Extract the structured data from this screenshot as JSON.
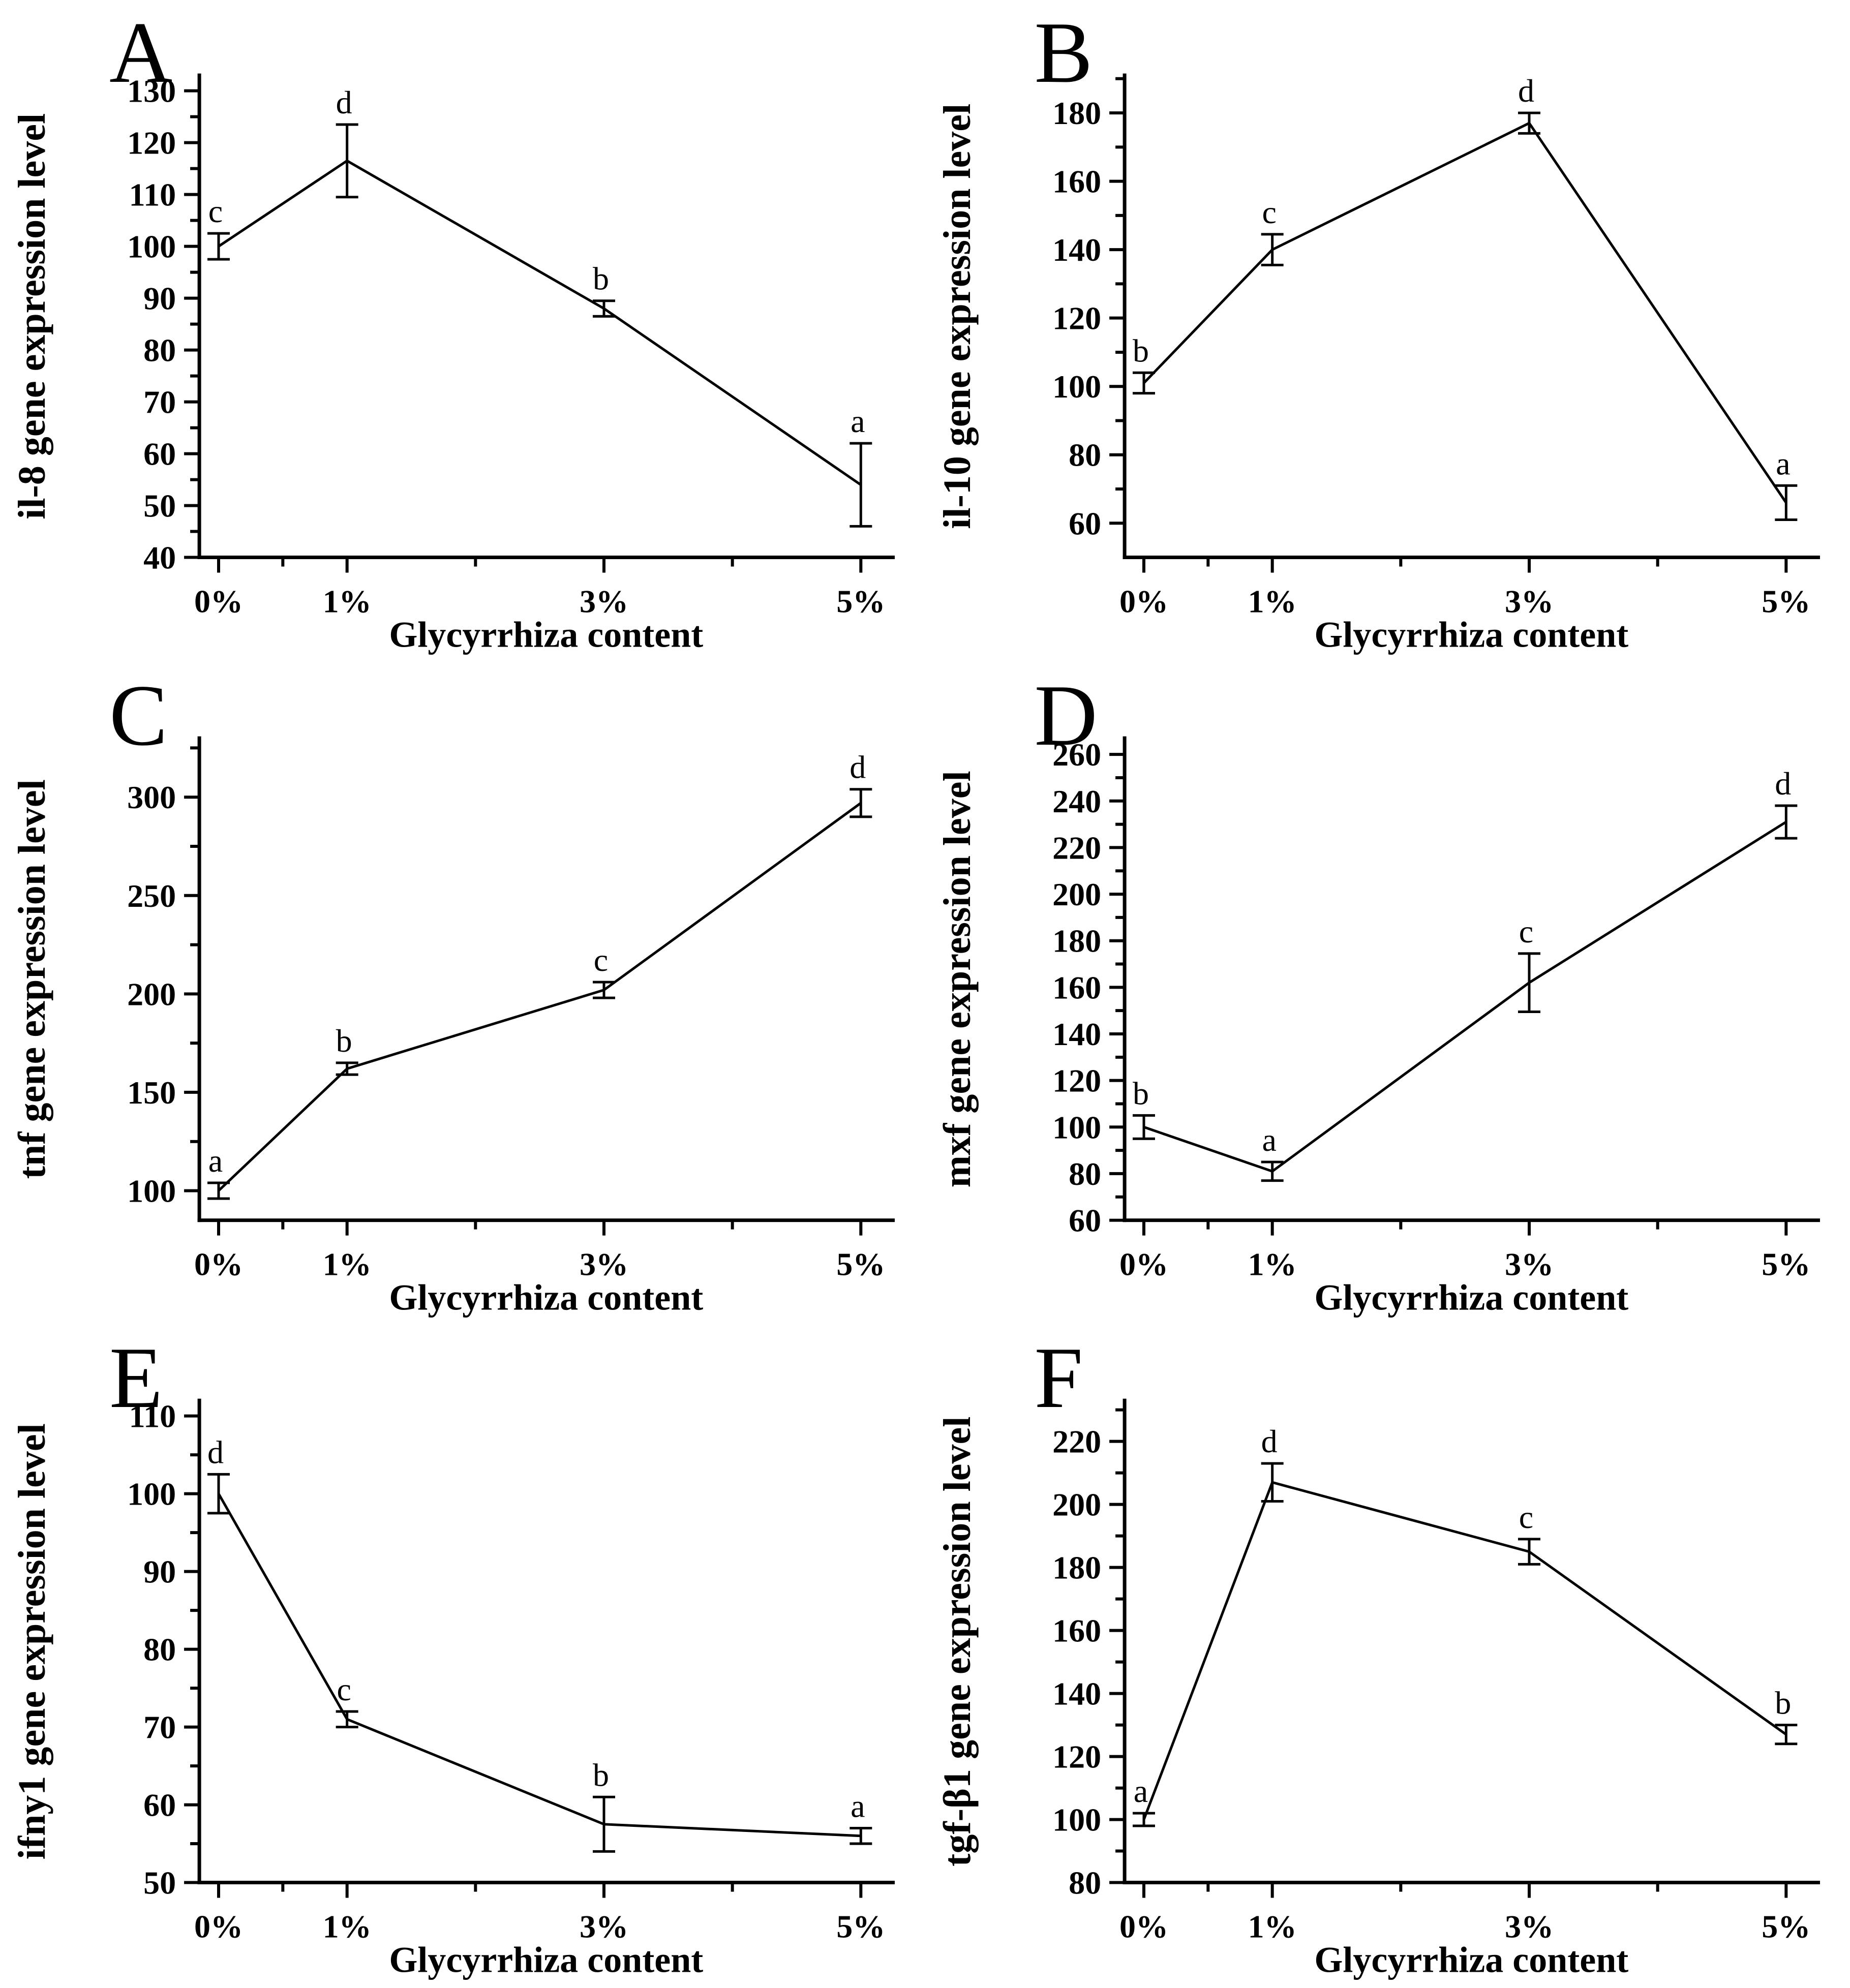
{
  "figure": {
    "background": "#ffffff",
    "line_color": "#000000",
    "xlabel_shared": "Glycyrrhiza content"
  },
  "chart_data": [
    {
      "type": "line",
      "panel": "A",
      "title": "",
      "ylabel": "il-8 gene expression level",
      "xlabel": "Glycyrrhiza content",
      "x_categories": [
        "0%",
        "1%",
        "3%",
        "5%"
      ],
      "x": [
        0,
        1,
        3,
        5
      ],
      "values": [
        100,
        116.5,
        88,
        54
      ],
      "errors": [
        2.5,
        7,
        1.5,
        8
      ],
      "point_labels": [
        "c",
        "d",
        "b",
        "a"
      ],
      "yticks": {
        "start": 40,
        "end": 130,
        "step": 10
      },
      "ylim": [
        40,
        133
      ],
      "xlim": [
        -0.15,
        5.25
      ],
      "x_minor": [
        0.5,
        2,
        4
      ],
      "grid": false,
      "legend": null
    },
    {
      "type": "line",
      "panel": "B",
      "title": "",
      "ylabel": "il-10 gene expression level",
      "xlabel": "Glycyrrhiza content",
      "x_categories": [
        "0%",
        "1%",
        "3%",
        "5%"
      ],
      "x": [
        0,
        1,
        3,
        5
      ],
      "values": [
        101,
        140,
        177,
        66
      ],
      "errors": [
        3,
        4.5,
        3,
        5
      ],
      "point_labels": [
        "b",
        "c",
        "d",
        "a"
      ],
      "yticks": {
        "start": 60,
        "end": 180,
        "step": 20
      },
      "ylim": [
        50,
        191
      ],
      "xlim": [
        -0.15,
        5.25
      ],
      "x_minor": [
        0.5,
        2,
        4
      ],
      "grid": false,
      "legend": null
    },
    {
      "type": "line",
      "panel": "C",
      "title": "",
      "ylabel": "tnf gene expression level",
      "xlabel": "Glycyrrhiza content",
      "x_categories": [
        "0%",
        "1%",
        "3%",
        "5%"
      ],
      "x": [
        0,
        1,
        3,
        5
      ],
      "values": [
        100,
        162,
        202,
        297
      ],
      "errors": [
        4,
        3,
        4,
        7
      ],
      "point_labels": [
        "a",
        "b",
        "c",
        "d"
      ],
      "yticks": {
        "start": 100,
        "end": 300,
        "step": 50
      },
      "ylim": [
        85,
        330
      ],
      "xlim": [
        -0.15,
        5.25
      ],
      "x_minor": [
        0.5,
        2,
        4
      ],
      "grid": false,
      "legend": null
    },
    {
      "type": "line",
      "panel": "D",
      "title": "",
      "ylabel": "mxf gene expression level",
      "xlabel": "Glycyrrhiza content",
      "x_categories": [
        "0%",
        "1%",
        "3%",
        "5%"
      ],
      "x": [
        0,
        1,
        3,
        5
      ],
      "values": [
        100,
        81,
        162,
        231
      ],
      "errors": [
        5,
        4,
        12.5,
        7
      ],
      "point_labels": [
        "b",
        "a",
        "c",
        "d"
      ],
      "yticks": {
        "start": 60,
        "end": 260,
        "step": 20
      },
      "ylim": [
        60,
        267
      ],
      "xlim": [
        -0.15,
        5.25
      ],
      "x_minor": [
        0.5,
        2,
        4
      ],
      "grid": false,
      "legend": null
    },
    {
      "type": "line",
      "panel": "E",
      "title": "",
      "ylabel": "ifny1 gene expression level",
      "xlabel": "Glycyrrhiza content",
      "x_categories": [
        "0%",
        "1%",
        "3%",
        "5%"
      ],
      "x": [
        0,
        1,
        3,
        5
      ],
      "values": [
        100,
        71,
        57.5,
        56
      ],
      "errors": [
        2.5,
        1,
        3.5,
        1
      ],
      "point_labels": [
        "d",
        "c",
        "b",
        "a"
      ],
      "yticks": {
        "start": 50,
        "end": 110,
        "step": 10
      },
      "ylim": [
        50,
        112
      ],
      "xlim": [
        -0.15,
        5.25
      ],
      "x_minor": [
        0.5,
        2,
        4
      ],
      "grid": false,
      "legend": null
    },
    {
      "type": "line",
      "panel": "F",
      "title": "",
      "ylabel": "tgf-β1 gene expression level",
      "xlabel": "Glycyrrhiza content",
      "x_categories": [
        "0%",
        "1%",
        "3%",
        "5%"
      ],
      "x": [
        0,
        1,
        3,
        5
      ],
      "values": [
        100,
        207,
        185,
        127
      ],
      "errors": [
        2,
        6,
        4,
        3
      ],
      "point_labels": [
        "a",
        "d",
        "c",
        "b"
      ],
      "yticks": {
        "start": 80,
        "end": 220,
        "step": 20
      },
      "ylim": [
        80,
        233
      ],
      "xlim": [
        -0.15,
        5.25
      ],
      "x_minor": [
        0.5,
        2,
        4
      ],
      "grid": false,
      "legend": null
    }
  ]
}
